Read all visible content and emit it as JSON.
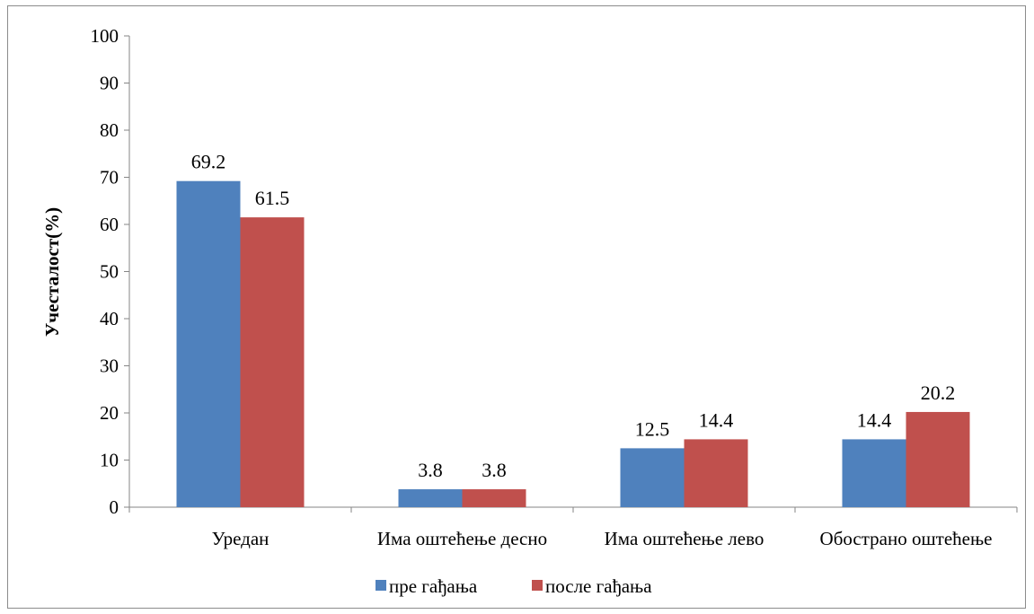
{
  "chart_data": {
    "type": "bar",
    "categories": [
      "Уредан",
      "Има оштећење десно",
      "Има оштећење лево",
      "Обострано оштећење"
    ],
    "series": [
      {
        "name": "пре гађања",
        "values": [
          69.2,
          3.8,
          12.5,
          14.4
        ],
        "color": "#4f81bd"
      },
      {
        "name": "после гађања",
        "values": [
          61.5,
          3.8,
          14.4,
          20.2
        ],
        "color": "#c0504d"
      }
    ],
    "ylabel": "Учесталост(%)",
    "xlabel": "",
    "ylim": [
      0,
      100
    ],
    "yticks": [
      0,
      10,
      20,
      30,
      40,
      50,
      60,
      70,
      80,
      90,
      100
    ],
    "grid": false,
    "legend": "bottom"
  }
}
